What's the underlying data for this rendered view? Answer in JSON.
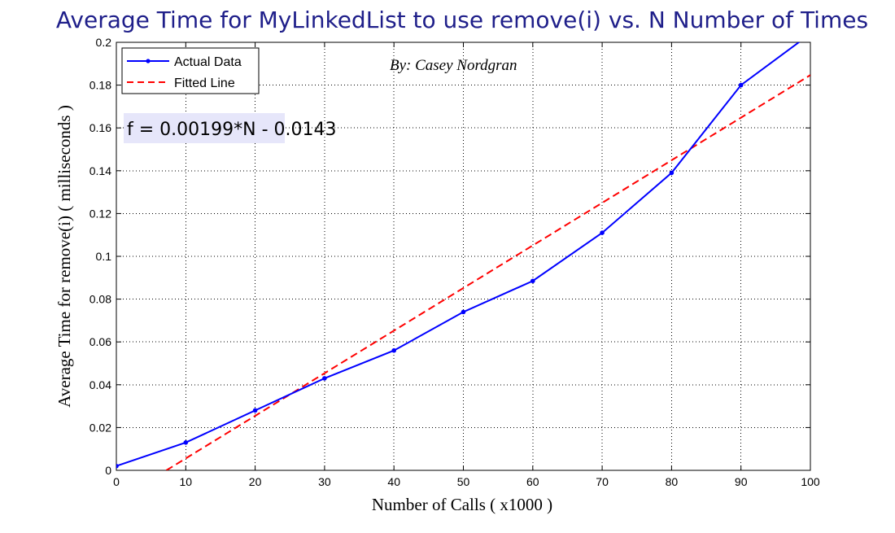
{
  "chart_data": {
    "type": "line",
    "title": "Average Time for MyLinkedList to use remove(i)  vs.  N Number of Times",
    "xlabel": "Number of Calls ( x1000 )",
    "ylabel": "Average Time for remove(i) ( milliseconds )",
    "xlim": [
      0,
      100
    ],
    "ylim": [
      0,
      0.2
    ],
    "xticks": [
      0,
      10,
      20,
      30,
      40,
      50,
      60,
      70,
      80,
      90,
      100
    ],
    "yticks": [
      0,
      0.02,
      0.04,
      0.06,
      0.08,
      0.1,
      0.12,
      0.14,
      0.16,
      0.18,
      0.2
    ],
    "xtick_labels": [
      "0",
      "10",
      "20",
      "30",
      "40",
      "50",
      "60",
      "70",
      "80",
      "90",
      "100"
    ],
    "ytick_labels": [
      "0",
      "0.02",
      "0.04",
      "0.06",
      "0.08",
      "0.1",
      "0.12",
      "0.14",
      "0.16",
      "0.18",
      "0.2"
    ],
    "grid": true,
    "legend_position": "top-left",
    "series": [
      {
        "name": "Actual Data",
        "color": "#0000ff",
        "style": "solid",
        "marker": "dot",
        "x": [
          0,
          10,
          20,
          30,
          40,
          50,
          60,
          70,
          80,
          90,
          100
        ],
        "y": [
          0.002,
          0.013,
          0.028,
          0.043,
          0.056,
          0.074,
          0.0885,
          0.111,
          0.139,
          0.18,
          0.204
        ]
      },
      {
        "name": "Fitted Line",
        "color": "#ff0000",
        "style": "dashed",
        "x": [
          7.2,
          100
        ],
        "y": [
          0,
          0.1847
        ]
      }
    ],
    "annotations": {
      "author": "By: Casey Nordgran",
      "formula": "f = 0.00199*N - 0.0143",
      "formula_background": "#e6e6fa"
    }
  }
}
